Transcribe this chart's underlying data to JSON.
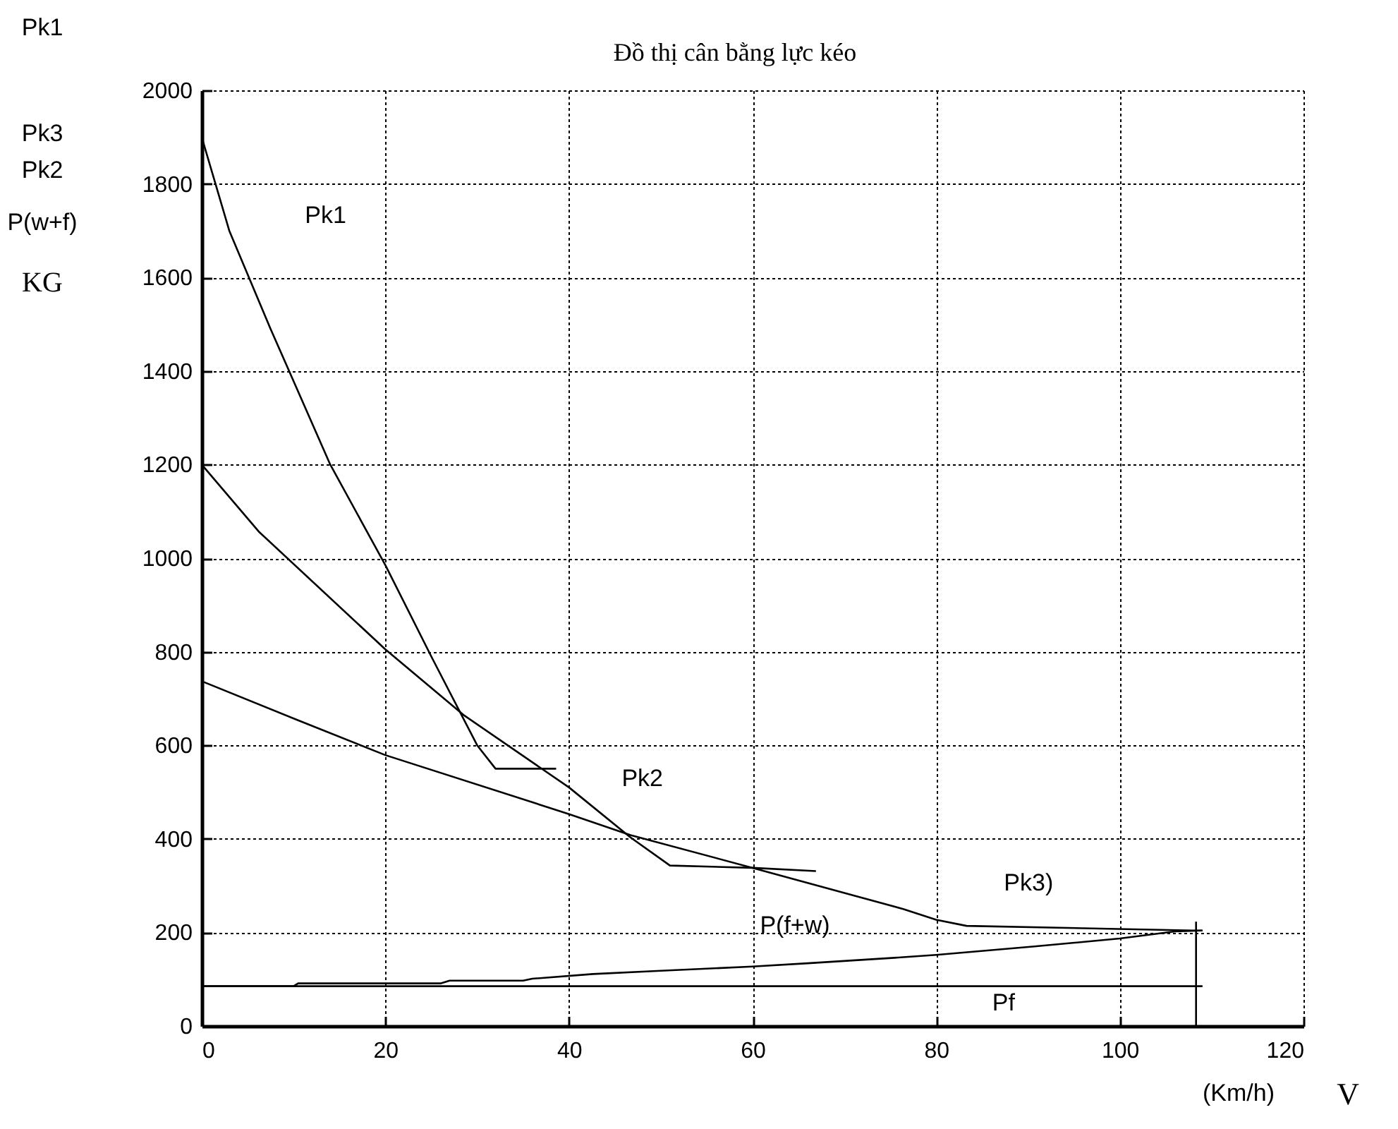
{
  "chart_data": {
    "type": "line",
    "title": "Đồ thị cân bằng lực kéo",
    "xlabel": "V",
    "ylabel": "KG",
    "annotations": [
      "Pk1",
      "Pk3",
      "Pk2",
      "P(w+f)",
      "(Km/h)"
    ],
    "xlim": [
      0,
      120
    ],
    "xticks": [
      0,
      20,
      40,
      60,
      80,
      100,
      120
    ],
    "ylim": [
      0,
      2000
    ],
    "yticks": [
      0,
      200,
      400,
      600,
      800,
      1000,
      1200,
      1400,
      1600,
      1800,
      2000
    ],
    "grid": true,
    "series": [
      {
        "name": "Pk1",
        "color": "#000000",
        "x": [
          0,
          3,
          7.5,
          14,
          20,
          25,
          30,
          32,
          38.6
        ],
        "values": [
          1900,
          1700,
          1490,
          1200,
          985,
          790,
          600,
          550,
          550
        ]
      },
      {
        "name": "Pk2",
        "color": "#000000",
        "x": [
          0,
          6.2,
          20,
          28.5,
          40,
          46.7,
          51,
          60,
          66.9
        ],
        "values": [
          1200,
          1057,
          805,
          665,
          510,
          403,
          343,
          338,
          331
        ]
      },
      {
        "name": "Pk3)",
        "color": "#000000",
        "x": [
          0,
          10.3,
          20,
          40,
          46.7,
          60,
          76.4,
          80,
          83.3,
          108.1,
          109
        ],
        "values": [
          737,
          655,
          579,
          453,
          408,
          338,
          250,
          227,
          214,
          204,
          204
        ]
      },
      {
        "name": "P(f+w)",
        "color": "#000000",
        "x": [
          0,
          10,
          10.5,
          26,
          27,
          35,
          36,
          42.6,
          50,
          60,
          66,
          76.4,
          80,
          90.7,
          100,
          106,
          109
        ],
        "values": [
          85,
          85,
          91,
          91,
          97,
          97,
          101,
          111,
          118,
          127,
          134,
          147,
          152,
          170,
          187,
          202,
          204
        ]
      },
      {
        "name": "Pf",
        "color": "#000000",
        "x": [
          0,
          109
        ],
        "values": [
          85,
          85
        ]
      },
      {
        "color": "#000000",
        "x": [
          108.3,
          108.3
        ],
        "values": [
          0,
          223
        ]
      }
    ]
  }
}
